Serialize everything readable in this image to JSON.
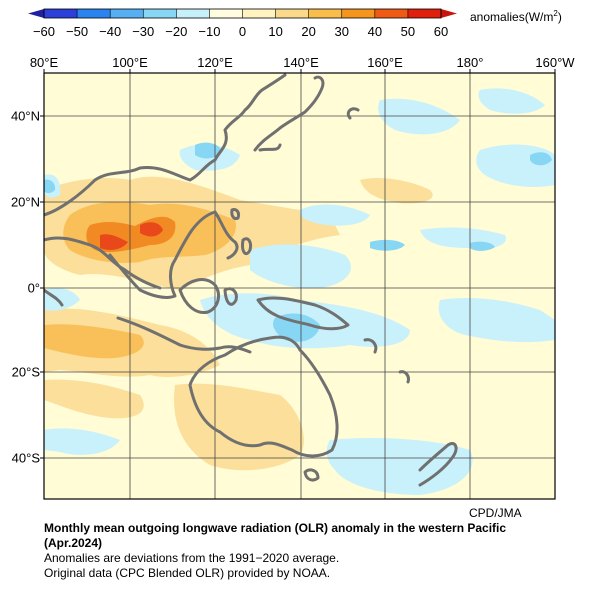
{
  "colorbar": {
    "ticks": [
      "−60",
      "−50",
      "−40",
      "−30",
      "−20",
      "−10",
      "0",
      "10",
      "20",
      "30",
      "40",
      "50",
      "60"
    ],
    "units_prefix": "anomalies(W/m",
    "units_sup": "2",
    "units_suffix": ")",
    "colors": [
      "#2c3fd8",
      "#2a84f0",
      "#55aff2",
      "#86d6f4",
      "#c7f1fa",
      "#fffce0",
      "#fff4c0",
      "#fbd98a",
      "#f9bd4c",
      "#f5951e",
      "#ef5a14",
      "#e0200c"
    ]
  },
  "map": {
    "lon_labels": [
      "80°E",
      "100°E",
      "120°E",
      "140°E",
      "160°E",
      "180°",
      "160°W"
    ],
    "lat_labels": [
      "40°N",
      "20°N",
      "0°",
      "20°S",
      "40°S"
    ],
    "region": "western Pacific"
  },
  "credit": "CPD/JMA",
  "caption": {
    "title_line1": "Monthly mean outgoing longwave radiation (OLR) anomaly in the western Pacific",
    "title_line2": "(Apr.2024)",
    "note1": "Anomalies are deviations from the 1991−2020 average.",
    "note2": "Original data (CPC Blended OLR) provided by NOAA."
  }
}
